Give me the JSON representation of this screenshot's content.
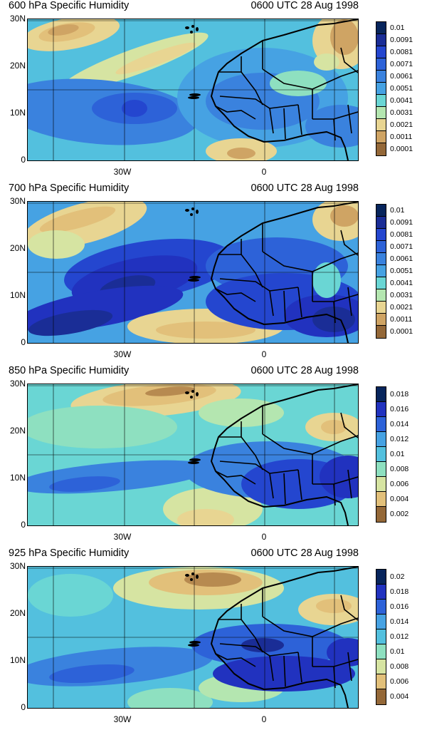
{
  "panels": [
    {
      "title": "600 hPa Specific Humidity",
      "time": "0600 UTC 28 Aug 1998",
      "y_labels": [
        "30N",
        "20N",
        "10N",
        "0"
      ],
      "x_labels": [
        "30W",
        "0"
      ],
      "legend": [
        "0.01",
        "0.0091",
        "0.0081",
        "0.0071",
        "0.0061",
        "0.0051",
        "0.0041",
        "0.0031",
        "0.0021",
        "0.0011",
        "0.0001"
      ]
    },
    {
      "title": "700 hPa Specific Humidity",
      "time": "0600 UTC 28 Aug 1998",
      "y_labels": [
        "30N",
        "20N",
        "10N",
        "0"
      ],
      "x_labels": [
        "30W",
        "0"
      ],
      "legend": [
        "0.01",
        "0.0091",
        "0.0081",
        "0.0071",
        "0.0061",
        "0.0051",
        "0.0041",
        "0.0031",
        "0.0021",
        "0.0011",
        "0.0001"
      ]
    },
    {
      "title": "850 hPa Specific Humidity",
      "time": "0600 UTC 28 Aug 1998",
      "y_labels": [
        "30N",
        "20N",
        "10N",
        "0"
      ],
      "x_labels": [
        "30W",
        "0"
      ],
      "legend": [
        "0.018",
        "0.016",
        "0.014",
        "0.012",
        "0.01",
        "0.008",
        "0.006",
        "0.004",
        "0.002"
      ]
    },
    {
      "title": "925 hPa Specific Humidity",
      "time": "0600 UTC 28 Aug 1998",
      "y_labels": [
        "30N",
        "20N",
        "10N",
        "0"
      ],
      "x_labels": [
        "30W",
        "0"
      ],
      "legend": [
        "0.02",
        "0.018",
        "0.016",
        "0.014",
        "0.012",
        "0.01",
        "0.008",
        "0.006",
        "0.004"
      ]
    }
  ],
  "colors": {
    "palette": [
      "#07255c",
      "#1a2d96",
      "#2132bf",
      "#2446cf",
      "#2d62d8",
      "#3a82de",
      "#46a2e3",
      "#53c0de",
      "#6ad6d4",
      "#8ee0c0",
      "#b4e6b0",
      "#d6e4a2",
      "#e8d592",
      "#e2c07a",
      "#cfa464",
      "#b78a50",
      "#946838"
    ],
    "coast": "#000000",
    "grid": "#000000"
  }
}
